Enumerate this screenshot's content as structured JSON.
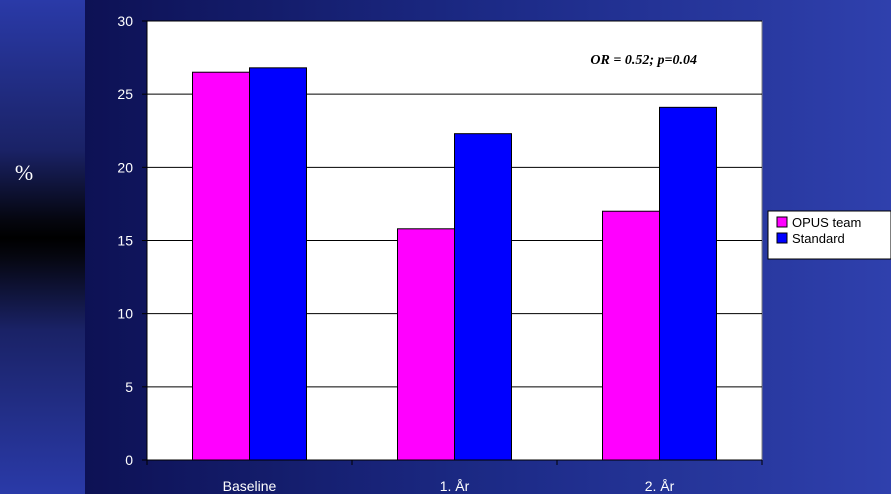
{
  "y_unit": "%",
  "chart_data": {
    "type": "bar",
    "categories": [
      "Baseline",
      "1.  År",
      "2.  År"
    ],
    "series": [
      {
        "name": "OPUS team",
        "values": [
          26.5,
          15.8,
          17.0
        ],
        "color": "#ff00ff"
      },
      {
        "name": "Standard",
        "values": [
          26.8,
          22.3,
          24.1
        ],
        "color": "#0000ff"
      }
    ],
    "ylim": [
      0,
      30
    ],
    "yticks": [
      0,
      5,
      10,
      15,
      20,
      25,
      30
    ],
    "annotation": "OR = 0.52; p=0.04",
    "legend_position": "right",
    "grid": true,
    "plot_background": "#ffffff"
  }
}
